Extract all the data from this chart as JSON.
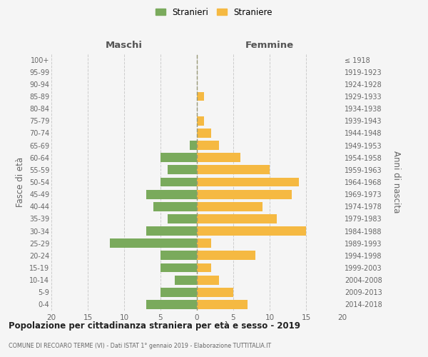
{
  "age_groups": [
    "0-4",
    "5-9",
    "10-14",
    "15-19",
    "20-24",
    "25-29",
    "30-34",
    "35-39",
    "40-44",
    "45-49",
    "50-54",
    "55-59",
    "60-64",
    "65-69",
    "70-74",
    "75-79",
    "80-84",
    "85-89",
    "90-94",
    "95-99",
    "100+"
  ],
  "birth_years": [
    "2014-2018",
    "2009-2013",
    "2004-2008",
    "1999-2003",
    "1994-1998",
    "1989-1993",
    "1984-1988",
    "1979-1983",
    "1974-1978",
    "1969-1973",
    "1964-1968",
    "1959-1963",
    "1954-1958",
    "1949-1953",
    "1944-1948",
    "1939-1943",
    "1934-1938",
    "1929-1933",
    "1924-1928",
    "1919-1923",
    "≤ 1918"
  ],
  "maschi": [
    7,
    5,
    3,
    5,
    5,
    12,
    7,
    4,
    6,
    7,
    5,
    4,
    5,
    1,
    0,
    0,
    0,
    0,
    0,
    0,
    0
  ],
  "femmine": [
    7,
    5,
    3,
    2,
    8,
    2,
    15,
    11,
    9,
    13,
    14,
    10,
    6,
    3,
    2,
    1,
    0,
    1,
    0,
    0,
    0
  ],
  "color_maschi": "#7aaa5c",
  "color_femmine": "#f5b942",
  "title": "Popolazione per cittadinanza straniera per età e sesso - 2019",
  "subtitle": "COMUNE DI RECOARO TERME (VI) - Dati ISTAT 1° gennaio 2019 - Elaborazione TUTTITALIA.IT",
  "ylabel_left": "Fasce di età",
  "ylabel_right": "Anni di nascita",
  "xlabel_maschi": "Maschi",
  "xlabel_femmine": "Femmine",
  "xlim": 20,
  "legend_stranieri": "Stranieri",
  "legend_straniere": "Straniere",
  "bg_color": "#f5f5f5",
  "grid_color": "#cccccc",
  "bar_height": 0.75
}
